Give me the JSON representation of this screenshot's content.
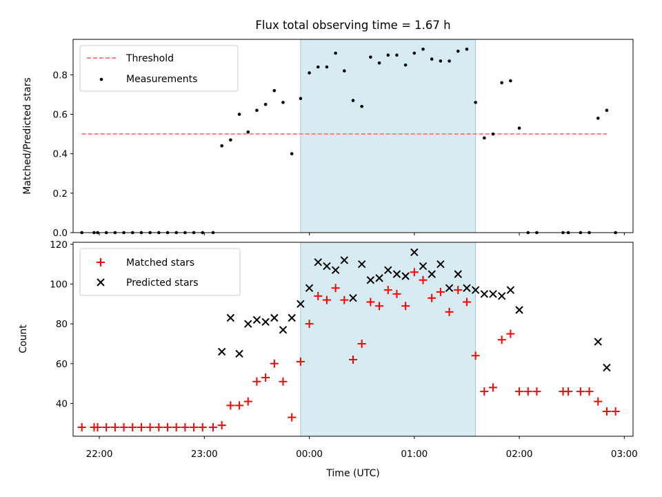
{
  "chart_data": {
    "type": "scatter",
    "title": "Flux total observing time = 1.67 h",
    "xlabel": "Time (UTC)",
    "x_ticks": [
      "22:00",
      "23:00",
      "00:00",
      "01:00",
      "02:00",
      "03:00"
    ],
    "xlim": [
      "21:45",
      "03:05"
    ],
    "shaded_interval": {
      "start": "23:55",
      "end": "01:35",
      "color": "#add8e6"
    },
    "panels": [
      {
        "ylabel": "Matched/Predicted stars",
        "ylim": [
          0,
          0.98
        ],
        "y_ticks": [
          "0.0",
          "0.2",
          "0.4",
          "0.6",
          "0.8"
        ],
        "legend_position": "top-left",
        "series": [
          {
            "name": "Threshold",
            "kind": "dashed-line",
            "color": "#ff7f7f",
            "points": [
              [
                "21:50",
                0.5
              ],
              [
                "02:50",
                0.5
              ]
            ]
          },
          {
            "name": "Measurements",
            "kind": "dot",
            "color": "#000000",
            "points": [
              [
                "21:50",
                0.0
              ],
              [
                "21:57",
                0.0
              ],
              [
                "21:59",
                0.0
              ],
              [
                "22:04",
                0.0
              ],
              [
                "22:09",
                0.0
              ],
              [
                "22:14",
                0.0
              ],
              [
                "22:19",
                0.0
              ],
              [
                "22:24",
                0.0
              ],
              [
                "22:29",
                0.0
              ],
              [
                "22:34",
                0.0
              ],
              [
                "22:39",
                0.0
              ],
              [
                "22:44",
                0.0
              ],
              [
                "22:49",
                0.0
              ],
              [
                "22:54",
                0.0
              ],
              [
                "22:59",
                0.0
              ],
              [
                "23:05",
                0.0
              ],
              [
                "23:10",
                0.44
              ],
              [
                "23:15",
                0.47
              ],
              [
                "23:20",
                0.6
              ],
              [
                "23:25",
                0.51
              ],
              [
                "23:30",
                0.62
              ],
              [
                "23:35",
                0.65
              ],
              [
                "23:40",
                0.72
              ],
              [
                "23:45",
                0.66
              ],
              [
                "23:50",
                0.4
              ],
              [
                "23:55",
                0.68
              ],
              [
                "00:00",
                0.81
              ],
              [
                "00:05",
                0.84
              ],
              [
                "00:10",
                0.84
              ],
              [
                "00:15",
                0.91
              ],
              [
                "00:20",
                0.82
              ],
              [
                "00:25",
                0.67
              ],
              [
                "00:30",
                0.64
              ],
              [
                "00:35",
                0.89
              ],
              [
                "00:40",
                0.86
              ],
              [
                "00:45",
                0.9
              ],
              [
                "00:50",
                0.9
              ],
              [
                "00:55",
                0.85
              ],
              [
                "01:00",
                0.91
              ],
              [
                "01:05",
                0.93
              ],
              [
                "01:10",
                0.88
              ],
              [
                "01:15",
                0.87
              ],
              [
                "01:20",
                0.87
              ],
              [
                "01:25",
                0.92
              ],
              [
                "01:30",
                0.93
              ],
              [
                "01:35",
                0.66
              ],
              [
                "01:40",
                0.48
              ],
              [
                "01:45",
                0.5
              ],
              [
                "01:50",
                0.76
              ],
              [
                "01:55",
                0.77
              ],
              [
                "02:00",
                0.53
              ],
              [
                "02:05",
                0.0
              ],
              [
                "02:10",
                0.0
              ],
              [
                "02:25",
                0.0
              ],
              [
                "02:28",
                0.0
              ],
              [
                "02:35",
                0.0
              ],
              [
                "02:40",
                0.0
              ],
              [
                "02:45",
                0.58
              ],
              [
                "02:50",
                0.62
              ],
              [
                "02:55",
                0.0
              ]
            ]
          }
        ]
      },
      {
        "ylabel": "Count",
        "ylim": [
          23.5,
          121
        ],
        "y_ticks": [
          "40",
          "60",
          "80",
          "100",
          "120"
        ],
        "legend_position": "top-left",
        "series": [
          {
            "name": "Matched stars",
            "kind": "plus",
            "color": "#ff0000",
            "points": [
              [
                "21:50",
                28
              ],
              [
                "21:57",
                28
              ],
              [
                "21:59",
                28
              ],
              [
                "22:04",
                28
              ],
              [
                "22:09",
                28
              ],
              [
                "22:14",
                28
              ],
              [
                "22:19",
                28
              ],
              [
                "22:24",
                28
              ],
              [
                "22:29",
                28
              ],
              [
                "22:34",
                28
              ],
              [
                "22:39",
                28
              ],
              [
                "22:44",
                28
              ],
              [
                "22:49",
                28
              ],
              [
                "22:54",
                28
              ],
              [
                "22:59",
                28
              ],
              [
                "23:05",
                28
              ],
              [
                "23:10",
                29
              ],
              [
                "23:15",
                39
              ],
              [
                "23:20",
                39
              ],
              [
                "23:25",
                41
              ],
              [
                "23:30",
                51
              ],
              [
                "23:35",
                53
              ],
              [
                "23:40",
                60
              ],
              [
                "23:45",
                51
              ],
              [
                "23:50",
                33
              ],
              [
                "23:55",
                61
              ],
              [
                "00:00",
                80
              ],
              [
                "00:05",
                94
              ],
              [
                "00:10",
                92
              ],
              [
                "00:15",
                98
              ],
              [
                "00:20",
                92
              ],
              [
                "00:25",
                62
              ],
              [
                "00:30",
                70
              ],
              [
                "00:35",
                91
              ],
              [
                "00:40",
                89
              ],
              [
                "00:45",
                97
              ],
              [
                "00:50",
                95
              ],
              [
                "00:55",
                89
              ],
              [
                "01:00",
                106
              ],
              [
                "01:05",
                102
              ],
              [
                "01:10",
                93
              ],
              [
                "01:15",
                96
              ],
              [
                "01:20",
                86
              ],
              [
                "01:25",
                97
              ],
              [
                "01:30",
                91
              ],
              [
                "01:35",
                64
              ],
              [
                "01:40",
                46
              ],
              [
                "01:45",
                48
              ],
              [
                "01:50",
                72
              ],
              [
                "01:55",
                75
              ],
              [
                "02:00",
                46
              ],
              [
                "02:05",
                46
              ],
              [
                "02:10",
                46
              ],
              [
                "02:25",
                46
              ],
              [
                "02:28",
                46
              ],
              [
                "02:35",
                46
              ],
              [
                "02:40",
                46
              ],
              [
                "02:45",
                41
              ],
              [
                "02:50",
                36
              ],
              [
                "02:55",
                36
              ]
            ]
          },
          {
            "name": "Predicted stars",
            "kind": "x",
            "color": "#000000",
            "points": [
              [
                "23:10",
                66
              ],
              [
                "23:15",
                83
              ],
              [
                "23:20",
                65
              ],
              [
                "23:25",
                80
              ],
              [
                "23:30",
                82
              ],
              [
                "23:35",
                81
              ],
              [
                "23:40",
                83
              ],
              [
                "23:45",
                77
              ],
              [
                "23:50",
                83
              ],
              [
                "23:55",
                90
              ],
              [
                "00:00",
                98
              ],
              [
                "00:05",
                111
              ],
              [
                "00:10",
                109
              ],
              [
                "00:15",
                107
              ],
              [
                "00:20",
                112
              ],
              [
                "00:25",
                93
              ],
              [
                "00:30",
                110
              ],
              [
                "00:35",
                102
              ],
              [
                "00:40",
                103
              ],
              [
                "00:45",
                107
              ],
              [
                "00:50",
                105
              ],
              [
                "00:55",
                104
              ],
              [
                "01:00",
                116
              ],
              [
                "01:05",
                109
              ],
              [
                "01:10",
                105
              ],
              [
                "01:15",
                110
              ],
              [
                "01:20",
                98
              ],
              [
                "01:25",
                105
              ],
              [
                "01:30",
                98
              ],
              [
                "01:35",
                97
              ],
              [
                "01:40",
                95
              ],
              [
                "01:45",
                95
              ],
              [
                "01:50",
                94
              ],
              [
                "01:55",
                97
              ],
              [
                "02:00",
                87
              ],
              [
                "02:45",
                71
              ],
              [
                "02:50",
                58
              ]
            ]
          }
        ]
      }
    ]
  }
}
